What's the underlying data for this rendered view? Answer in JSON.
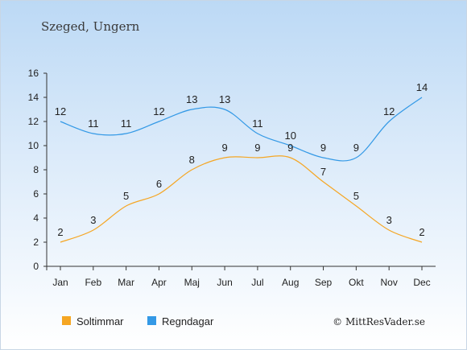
{
  "chart_data": {
    "type": "line",
    "title": "Szeged, Ungern",
    "categories": [
      "Jan",
      "Feb",
      "Mar",
      "Apr",
      "Maj",
      "Jun",
      "Jul",
      "Aug",
      "Sep",
      "Okt",
      "Nov",
      "Dec"
    ],
    "ylim": [
      0,
      16
    ],
    "yticks": [
      0,
      2,
      4,
      6,
      8,
      10,
      12,
      14,
      16
    ],
    "series": [
      {
        "name": "Soltimmar",
        "color": "#f5a623",
        "values": [
          2,
          3,
          5,
          6,
          8,
          9,
          9,
          9,
          7,
          5,
          3,
          2
        ]
      },
      {
        "name": "Regndagar",
        "color": "#3399e6",
        "values": [
          12,
          11,
          11,
          12,
          13,
          13,
          11,
          10,
          9,
          9,
          12,
          14
        ]
      }
    ],
    "legend_position": "bottom-left",
    "credit": "© MittResVader.se"
  }
}
